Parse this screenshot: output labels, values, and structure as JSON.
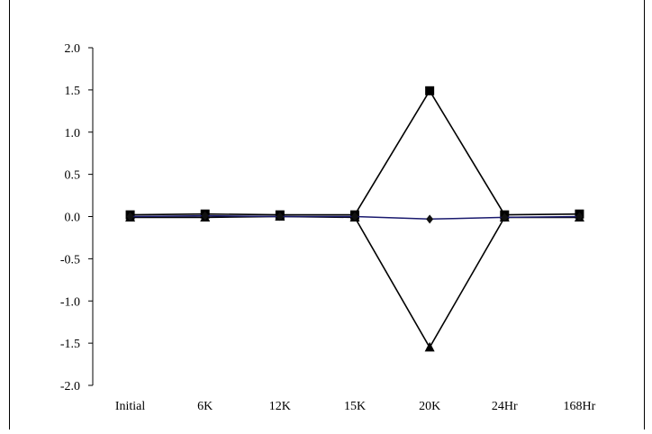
{
  "chart_data": {
    "type": "line",
    "categories": [
      "Initial",
      "6K",
      "12K",
      "15K",
      "20K",
      "24Hr",
      "168Hr"
    ],
    "ylim": [
      -2.0,
      2.0
    ],
    "yticks": [
      "2.0",
      "1.5",
      "1.0",
      "0.5",
      "0.0",
      "-0.5",
      "-1.0",
      "-1.5",
      "-2.0"
    ],
    "ytick_values": [
      2.0,
      1.5,
      1.0,
      0.5,
      0.0,
      -0.5,
      -1.0,
      -1.5,
      -2.0
    ],
    "series": [
      {
        "marker": "diamond",
        "color": "#1a1a6e",
        "values": [
          0.0,
          0.01,
          0.0,
          0.0,
          -0.03,
          -0.01,
          0.0
        ]
      },
      {
        "marker": "square",
        "color": "#000000",
        "values": [
          0.02,
          0.03,
          0.02,
          0.02,
          1.49,
          0.02,
          0.03
        ]
      },
      {
        "marker": "triangle",
        "color": "#000000",
        "values": [
          -0.01,
          -0.01,
          0.0,
          -0.01,
          -1.55,
          -0.01,
          -0.01
        ]
      }
    ],
    "grid": false,
    "legend": "none"
  }
}
